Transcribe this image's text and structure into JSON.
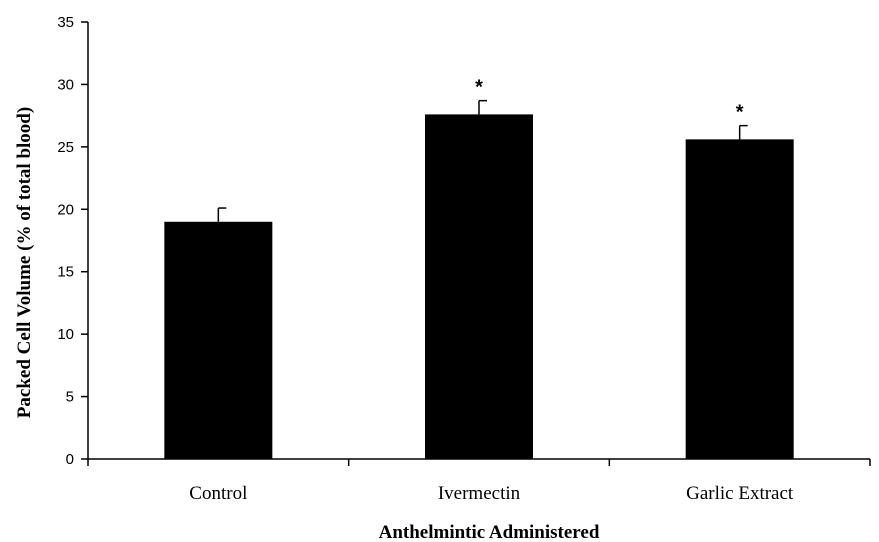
{
  "chart_data": {
    "type": "bar",
    "title": "",
    "xlabel": "Anthelmintic Administered",
    "ylabel": "Packed Cell Volume (% of total blood)",
    "ylim": [
      0,
      35
    ],
    "yticks": [
      "0",
      "5",
      "10",
      "15",
      "20",
      "25",
      "30",
      "35"
    ],
    "categories": [
      "Control",
      "Ivermectin",
      "Garlic Extract"
    ],
    "values": [
      19,
      27.6,
      25.6
    ],
    "error_bars": [
      1.1,
      1.1,
      1.1
    ],
    "significance": [
      "",
      "*",
      "*"
    ],
    "bar_color": "#000000",
    "grid": false,
    "legend": "none"
  }
}
